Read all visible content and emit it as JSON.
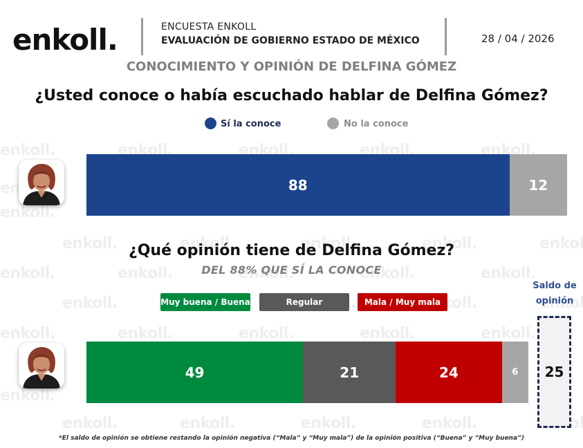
{
  "header": {
    "logo": "enkoll.",
    "survey": "ENCUESTA ENKOLL",
    "subtitle": "EVALUACIÓN DE GOBIERNO ESTADO DE MÉXICO",
    "date": "28 / 04 / 2026",
    "section_title": "CONOCIMIENTO Y OPINIÓN DE DELFINA GÓMEZ"
  },
  "watermark_text": "enkoll.",
  "colors": {
    "conoce": "#1c448c",
    "no_conoce": "#a6a6a6",
    "buena": "#008a3e",
    "regular": "#595959",
    "mala": "#c00000",
    "ns": "#a6a6a6"
  },
  "chart_data": [
    {
      "type": "bar",
      "orientation": "horizontal-stacked",
      "title": "¿Usted conoce o había escuchado hablar de Delfina Gómez?",
      "series": [
        {
          "name": "Sí la conoce",
          "values": [
            88
          ]
        },
        {
          "name": "No la conoce",
          "values": [
            12
          ]
        }
      ],
      "legend_placement": "top"
    },
    {
      "type": "bar",
      "orientation": "horizontal-stacked",
      "title": "¿Qué opinión tiene de Delfina Gómez?",
      "subtitle": "DEL 88% QUE SÍ LA CONOCE",
      "series": [
        {
          "name": "Muy buena / Buena",
          "values": [
            49
          ]
        },
        {
          "name": "Regular",
          "values": [
            21
          ]
        },
        {
          "name": "Mala / Muy mala",
          "values": [
            24
          ]
        },
        {
          "name": "",
          "values": [
            6
          ]
        }
      ],
      "legend_placement": "top",
      "saldo": {
        "label": "Saldo de opinión",
        "value": 25
      }
    }
  ],
  "footnote": "*El saldo de opinión se obtiene restando la opinión negativa (“Mala” y “Muy mala”) de la opinión positiva (“Buena” y “Muy buena”)"
}
